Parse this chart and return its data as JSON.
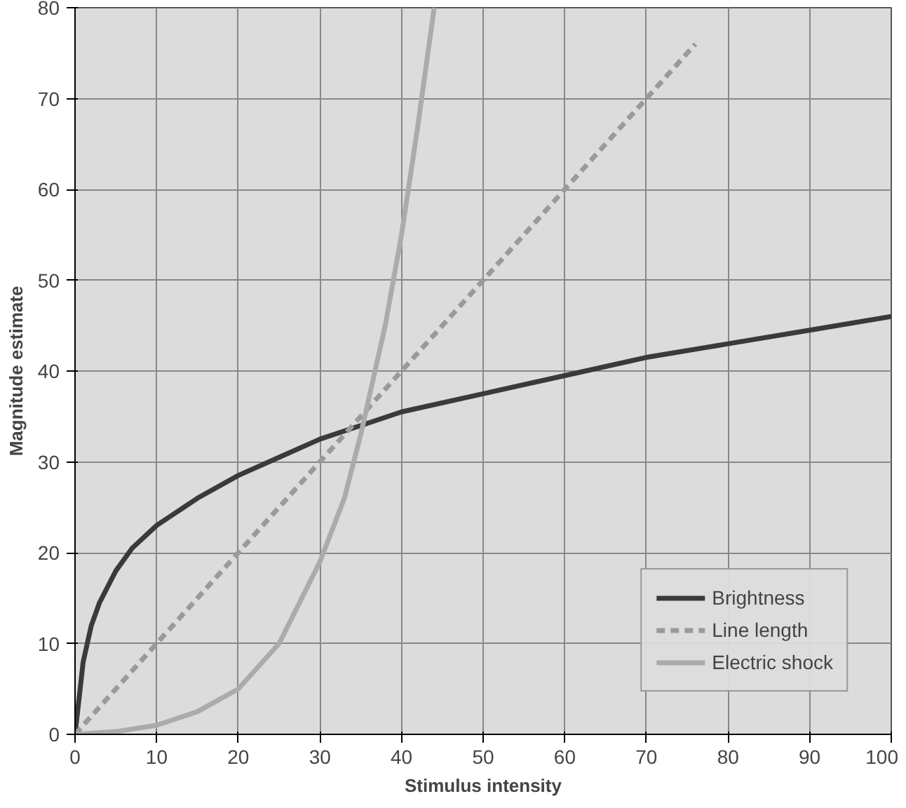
{
  "chart_data": {
    "type": "line",
    "xlabel": "Stimulus intensity",
    "ylabel": "Magnitude estimate",
    "xlim": [
      0,
      100
    ],
    "ylim": [
      0,
      80
    ],
    "xticks": [
      0,
      10,
      20,
      30,
      40,
      50,
      60,
      70,
      80,
      90,
      100
    ],
    "yticks": [
      0,
      10,
      20,
      30,
      40,
      50,
      60,
      70,
      80
    ],
    "grid": true,
    "legend": "bottom right",
    "series": [
      {
        "name": "Brightness",
        "color": "#3a3a3a",
        "line_style": "solid",
        "x": [
          0,
          1,
          2,
          3,
          5,
          7,
          10,
          15,
          20,
          25,
          30,
          35,
          40,
          50,
          60,
          70,
          80,
          90,
          100
        ],
        "values": [
          0,
          8,
          12,
          14.5,
          18,
          20.5,
          23,
          26,
          28.5,
          30.5,
          32.5,
          34,
          35.5,
          37.5,
          39.5,
          41.5,
          43,
          44.5,
          46
        ]
      },
      {
        "name": "Line length",
        "color": "#9a9a9a",
        "line_style": "dashed",
        "x": [
          0,
          76
        ],
        "values": [
          0,
          76
        ]
      },
      {
        "name": "Electric shock",
        "color": "#ababab",
        "line_style": "solid",
        "x": [
          0,
          5,
          10,
          15,
          20,
          25,
          30,
          33,
          35,
          38,
          40,
          42,
          44
        ],
        "values": [
          0,
          0.3,
          1,
          2.5,
          5,
          10,
          19,
          26,
          33,
          45,
          55,
          67,
          80
        ]
      }
    ]
  }
}
